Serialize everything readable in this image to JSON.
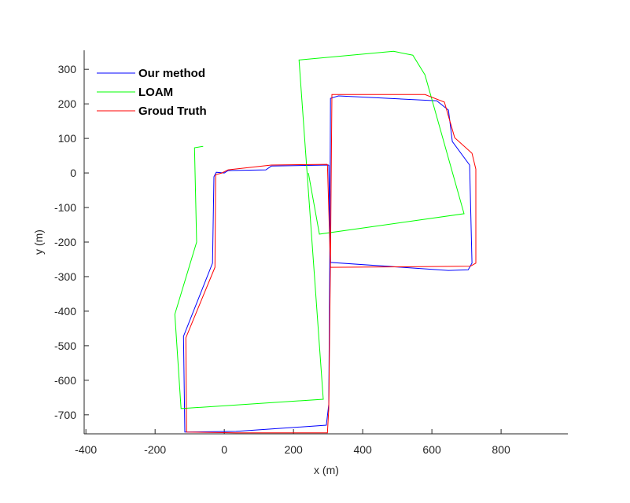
{
  "chart_data": {
    "type": "line",
    "xlabel": "x (m)",
    "ylabel": "y (m)",
    "xlim": [
      -405,
      993
    ],
    "ylim": [
      -755,
      355
    ],
    "xticks": [
      -400,
      -200,
      0,
      200,
      400,
      600,
      800
    ],
    "yticks": [
      -700,
      -600,
      -500,
      -400,
      -300,
      -200,
      -100,
      0,
      100,
      200,
      300
    ],
    "legend": "upper left",
    "series": [
      {
        "name": "Our method",
        "color": "#0000ff",
        "x": [
          302,
          136,
          120,
          11,
          0,
          -23,
          -30,
          -34,
          -118,
          -114,
          34,
          295,
          302,
          305,
          307,
          330,
          614,
          648,
          659,
          709,
          716,
          705,
          648,
          307,
          302
        ],
        "values": [
          23,
          20,
          9,
          7,
          0,
          2,
          -11,
          -261,
          -473,
          -750,
          -748,
          -730,
          -670,
          -250,
          216,
          223,
          209,
          182,
          91,
          23,
          -261,
          -280,
          -282,
          -259,
          23
        ]
      },
      {
        "name": "LOAM",
        "color": "#00ff00",
        "x": [
          -61,
          -86,
          -80,
          -143,
          -125,
          286,
          216,
          489,
          545,
          580,
          693,
          275,
          243
        ],
        "values": [
          77,
          73,
          -200,
          -409,
          -682,
          -655,
          327,
          352,
          341,
          284,
          -118,
          -177,
          0
        ]
      },
      {
        "name": "Groud Truth",
        "color": "#ff0000",
        "x": [
          298,
          136,
          11,
          -7,
          -25,
          -27,
          -111,
          -109,
          34,
          298,
          302,
          307,
          311,
          580,
          636,
          666,
          716,
          727,
          727,
          711,
          307,
          298
        ],
        "values": [
          25,
          23,
          9,
          0,
          -5,
          -273,
          -477,
          -750,
          -752,
          -752,
          -682,
          -250,
          227,
          227,
          205,
          102,
          57,
          11,
          -261,
          -270,
          -273,
          25
        ]
      }
    ]
  }
}
